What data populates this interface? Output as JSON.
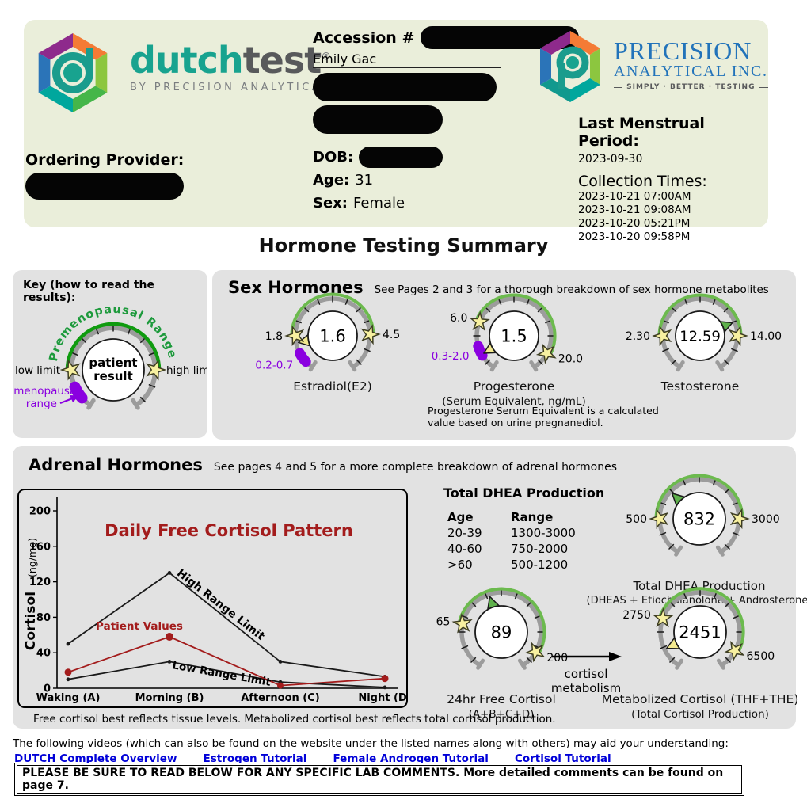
{
  "colors": {
    "arc_gray": "#9c9c9c",
    "gauge_green": "#6cba4e",
    "key_green": "#0f9b0f",
    "key_text_green": "#1d9a3c",
    "purple": "#8a00e0",
    "needle_yellow": "#f3e98f",
    "needle_green": "#5fb14c",
    "star_fill": "#f7f0a0",
    "dark_red": "#a31c1c",
    "link_blue": "#0000d8"
  },
  "header": {
    "dutch_logo": {
      "word1": "dutch",
      "word2": "test",
      "reg": "®",
      "tagline": "BY PRECISION ANALYTICAL INC."
    },
    "accession_label": "Accession #",
    "patient_name": "Emily Gac",
    "precision_logo": {
      "line1": "PRECISION",
      "line2": "ANALYTICAL INC.",
      "tagline": "SIMPLY · BETTER · TESTING"
    },
    "lmp_label": "Last Menstrual Period:",
    "lmp_value": "2023-09-30",
    "collection_label": "Collection Times:",
    "collection_times": [
      "2023-10-21 07:00AM",
      "2023-10-21 09:08AM",
      "2023-10-20 05:21PM",
      "2023-10-20 09:58PM"
    ],
    "provider_label": "Ordering Provider:",
    "dob_label": "DOB:",
    "age_label": "Age:",
    "age_value": "31",
    "sex_label": "Sex:",
    "sex_value": "Female"
  },
  "title": "Hormone Testing Summary",
  "key": {
    "title": "Key (how to read the results):",
    "curved_label": "Premenopausal Range",
    "low_label": "low limit",
    "high_label": "high limit",
    "center_line1": "patient",
    "center_line2": "result",
    "post_line1": "Postmenopausal",
    "post_line2": "range"
  },
  "sex_hormones": {
    "title": "Sex Hormones",
    "subtitle": "See Pages 2 and 3 for a thorough breakdown of sex hormone metabolites",
    "gauges": [
      {
        "name": "Estradiol(E2)",
        "value": "1.6",
        "low": "1.8",
        "high": "4.5",
        "post_range": "0.2-0.7",
        "low_angle": 180,
        "high_angle": 2,
        "post_angle": 216,
        "needle_angle": 191,
        "needle_color": "yellow"
      },
      {
        "name": "Progesterone",
        "sub": "(Serum Equivalent, ng/mL)",
        "value": "1.5",
        "low": "6.0",
        "high": "20.0",
        "post_range": "0.3-2.0",
        "low_angle": 158,
        "high_angle": -28,
        "post_angle": 204,
        "needle_angle": 210,
        "needle_color": "yellow"
      },
      {
        "name": "Testosterone",
        "value": "12.59",
        "low": "2.30",
        "high": "14.00",
        "low_angle": 180,
        "high_angle": 0,
        "needle_angle": 22,
        "needle_color": "green"
      }
    ],
    "note_line1": "Progesterone Serum Equivalent is a calculated",
    "note_line2": "value based on urine pregnanediol."
  },
  "adrenal": {
    "title": "Adrenal Hormones",
    "subtitle": "See pages 4 and 5 for a more complete breakdown of adrenal hormones",
    "dhea_table": {
      "title": "Total DHEA Production",
      "col1": "Age",
      "col2": "Range",
      "rows": [
        {
          "age": "20-39",
          "range": "1300-3000"
        },
        {
          "age": "40-60",
          "range": "750-2000"
        },
        {
          "age": ">60",
          "range": "500-1200"
        }
      ]
    },
    "gauges": [
      {
        "name": "Total DHEA Production",
        "sub": "(DHEAS + Etiocholanolone + Androsterone)",
        "value": "832",
        "low": "500",
        "high": "3000",
        "low_angle": 180,
        "high_angle": 0,
        "needle_angle": 137,
        "needle_color": "green"
      },
      {
        "name": "24hr Free Cortisol",
        "sub": "(A+B+C+D)",
        "value": "89",
        "low": "65",
        "high": "200",
        "low_angle": 168,
        "high_angle": -30,
        "needle_angle": 108,
        "needle_color": "green"
      },
      {
        "name": "Metabolized Cortisol (THF+THE)",
        "sub": "(Total Cortisol Production)",
        "value": "2451",
        "low": "2750",
        "high": "6500",
        "low_angle": 160,
        "high_angle": -28,
        "needle_angle": 206,
        "needle_color": "yellow"
      }
    ],
    "arrow_line1": "cortisol",
    "arrow_line2": "metabolism",
    "footnote": "Free cortisol best reflects tissue levels. Metabolized cortisol best reflects total cortisol production."
  },
  "chart_data": {
    "type": "line",
    "title": "Daily Free Cortisol Pattern",
    "ylabel": "Cortisol",
    "ylabel_units": "(ng/mg)",
    "categories": [
      "Waking (A)",
      "Morning (B)",
      "Afternoon (C)",
      "Night (D)"
    ],
    "ylim": [
      0,
      200
    ],
    "yticks": [
      0,
      40,
      80,
      120,
      160,
      200
    ],
    "grid": false,
    "series": [
      {
        "name": "High Range Limit",
        "color": "#1a1a1a",
        "values": [
          50,
          130,
          30,
          13
        ]
      },
      {
        "name": "Patient Values",
        "color": "#a31c1c",
        "values": [
          18,
          58,
          3,
          11
        ]
      },
      {
        "name": "Low Range Limit",
        "color": "#1a1a1a",
        "values": [
          10,
          30,
          7,
          1
        ]
      }
    ],
    "legend_position": "inline-annotations"
  },
  "footer": {
    "videos_line": "The following videos (which can also be found on the website under the listed names along with others) may aid your understanding:",
    "links": [
      {
        "label": "DUTCH Complete Overview"
      },
      {
        "label": "Estrogen Tutorial"
      },
      {
        "label": "Female Androgen Tutorial"
      },
      {
        "label": "Cortisol Tutorial"
      }
    ],
    "comment": "PLEASE BE SURE TO READ BELOW FOR ANY SPECIFIC LAB COMMENTS. More detailed comments can be found on page 7."
  }
}
